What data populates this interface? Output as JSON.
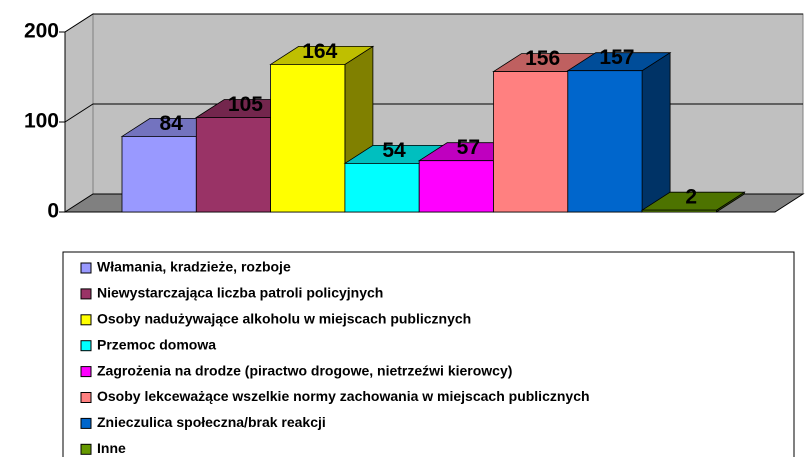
{
  "chart_data": {
    "type": "bar3d",
    "categories": [
      "Włamania, kradzieże, rozboje",
      "Niewystarczająca liczba patroli policyjnych",
      "Osoby nadużywające alkoholu w miejscach publicznych",
      "Przemoc domowa",
      "Zagrożenia na drodze (piractwo drogowe, nietrzeźwi kierowcy)",
      "Osoby lekceważące wszelkie normy zachowania w miejscach publicznych",
      "Znieczulica społeczna/brak reakcji",
      "Inne"
    ],
    "values": [
      84,
      105,
      164,
      54,
      57,
      156,
      157,
      2
    ],
    "colors": [
      "#9999ff",
      "#993366",
      "#ffff00",
      "#00ffff",
      "#ff00ff",
      "#ff8080",
      "#0066cc",
      "#669900"
    ],
    "ylim": [
      0,
      200
    ],
    "yticks": [
      0,
      100,
      200
    ],
    "grid": true
  }
}
